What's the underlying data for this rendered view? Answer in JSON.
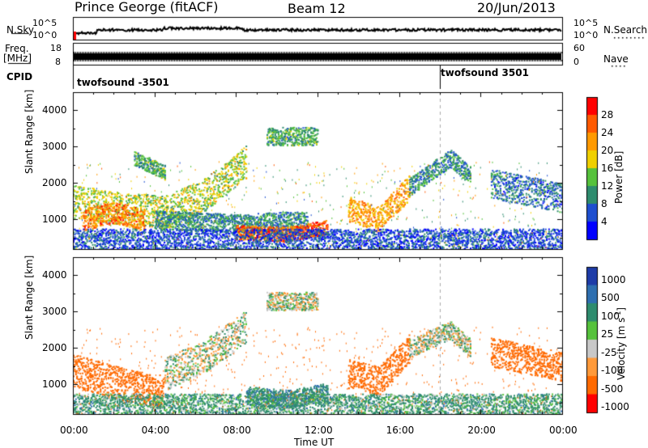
{
  "header": {
    "station": "Prince George (fitACF)",
    "beam": "Beam 12",
    "date": "20/Jun/2013"
  },
  "top_panels": {
    "nsky_label": "N.Sky",
    "nsky_ticks": [
      "10^5",
      "10^0"
    ],
    "nsearch_label": "N.Search",
    "nsearch_ticks": [
      "10^5",
      "10^0"
    ],
    "freq_label": [
      "Freq.",
      "[MHz]"
    ],
    "freq_ticks": [
      "18",
      "8"
    ],
    "nave_label": "Nave",
    "nave_ticks": [
      "60",
      "0"
    ],
    "cpid_label": "CPID",
    "cpid_segments": [
      "twofsound -3501",
      "twofsound 3501"
    ]
  },
  "colors": {
    "power_scale": [
      "#0000ff",
      "#1e4fd0",
      "#2e8c6e",
      "#56c23c",
      "#f0d000",
      "#ff9a00",
      "#ff5a00",
      "#ff0000"
    ],
    "velocity_scale": [
      "#1e3ca8",
      "#2e6fb0",
      "#2e8c6e",
      "#56c23c",
      "#c8c8c8",
      "#ff9a3a",
      "#ff6a00",
      "#ff0000"
    ],
    "black": "#000000"
  },
  "chart_data": [
    {
      "type": "heatmap",
      "name": "Power",
      "xlabel": "",
      "ylabel": "Slant Range [km]",
      "x_ticks": [
        "00:00",
        "04:00",
        "08:00",
        "12:00",
        "16:00",
        "20:00",
        "00:00"
      ],
      "y_ticks": [
        1000,
        2000,
        3000,
        4000
      ],
      "ylim": [
        180,
        4500
      ],
      "colorbar_label": "Power [dB]",
      "colorbar_ticks": [
        4,
        8,
        12,
        16,
        20,
        24,
        28
      ],
      "bands": [
        {
          "x": [
            0.0,
            2.5,
            4.5,
            6.5,
            8.5
          ],
          "y": [
            1500,
            1300,
            1200,
            1700,
            2600
          ],
          "w": 450,
          "v": 16
        },
        {
          "x": [
            0.5,
            2.0,
            3.5
          ],
          "y": [
            1000,
            1200,
            1000
          ],
          "w": 300,
          "v": 24
        },
        {
          "x": [
            4.0,
            8.0,
            11.5
          ],
          "y": [
            1000,
            900,
            1000
          ],
          "w": 250,
          "v": 10
        },
        {
          "x": [
            8.0,
            10.5,
            12.5
          ],
          "y": [
            650,
            600,
            800
          ],
          "w": 200,
          "v": 26
        },
        {
          "x": [
            13.5,
            15.0,
            16.5
          ],
          "y": [
            1300,
            1000,
            1900
          ],
          "w": 350,
          "v": 22
        },
        {
          "x": [
            16.5,
            18.5,
            19.5
          ],
          "y": [
            1900,
            2700,
            2200
          ],
          "w": 250,
          "v": 10
        },
        {
          "x": [
            20.5,
            24.0
          ],
          "y": [
            2000,
            1600
          ],
          "w": 400,
          "v": 8
        },
        {
          "x": [
            9.5,
            12.0
          ],
          "y": [
            3300,
            3300
          ],
          "w": 250,
          "v": 12
        },
        {
          "x": [
            3.0,
            4.5
          ],
          "y": [
            2700,
            2300
          ],
          "w": 200,
          "v": 12
        },
        {
          "x": [
            0.0,
            24.0
          ],
          "y": [
            450,
            450
          ],
          "w": 300,
          "v": 6
        }
      ]
    },
    {
      "type": "heatmap",
      "name": "Velocity",
      "xlabel": "Time UT",
      "ylabel": "Slant Range [km]",
      "x_ticks": [
        "00:00",
        "04:00",
        "08:00",
        "12:00",
        "16:00",
        "20:00",
        "00:00"
      ],
      "y_ticks": [
        1000,
        2000,
        3000,
        4000
      ],
      "ylim": [
        180,
        4500
      ],
      "colorbar_label": "Velocity [m s^-1]",
      "colorbar_ticks": [
        1000,
        500,
        100,
        25,
        -25,
        -100,
        -500,
        -1000
      ],
      "bands": [
        {
          "x": [
            0.0,
            2.5,
            4.5
          ],
          "y": [
            1400,
            1000,
            800
          ],
          "w": 450,
          "v": -300
        },
        {
          "x": [
            4.5,
            6.5,
            8.5
          ],
          "y": [
            1300,
            1800,
            2600
          ],
          "w": 450,
          "v": 0
        },
        {
          "x": [
            8.5,
            10.5,
            12.5
          ],
          "y": [
            700,
            600,
            800
          ],
          "w": 250,
          "v": 80
        },
        {
          "x": [
            13.5,
            15.0,
            16.5
          ],
          "y": [
            1300,
            1100,
            2000
          ],
          "w": 400,
          "v": -300
        },
        {
          "x": [
            16.5,
            18.5,
            19.5
          ],
          "y": [
            2000,
            2500,
            2000
          ],
          "w": 250,
          "v": 0
        },
        {
          "x": [
            20.5,
            24.0
          ],
          "y": [
            1900,
            1500
          ],
          "w": 400,
          "v": -200
        },
        {
          "x": [
            9.5,
            12.0
          ],
          "y": [
            3300,
            3300
          ],
          "w": 250,
          "v": 0
        },
        {
          "x": [
            0.0,
            24.0
          ],
          "y": [
            450,
            450
          ],
          "w": 300,
          "v": 50
        }
      ]
    }
  ]
}
